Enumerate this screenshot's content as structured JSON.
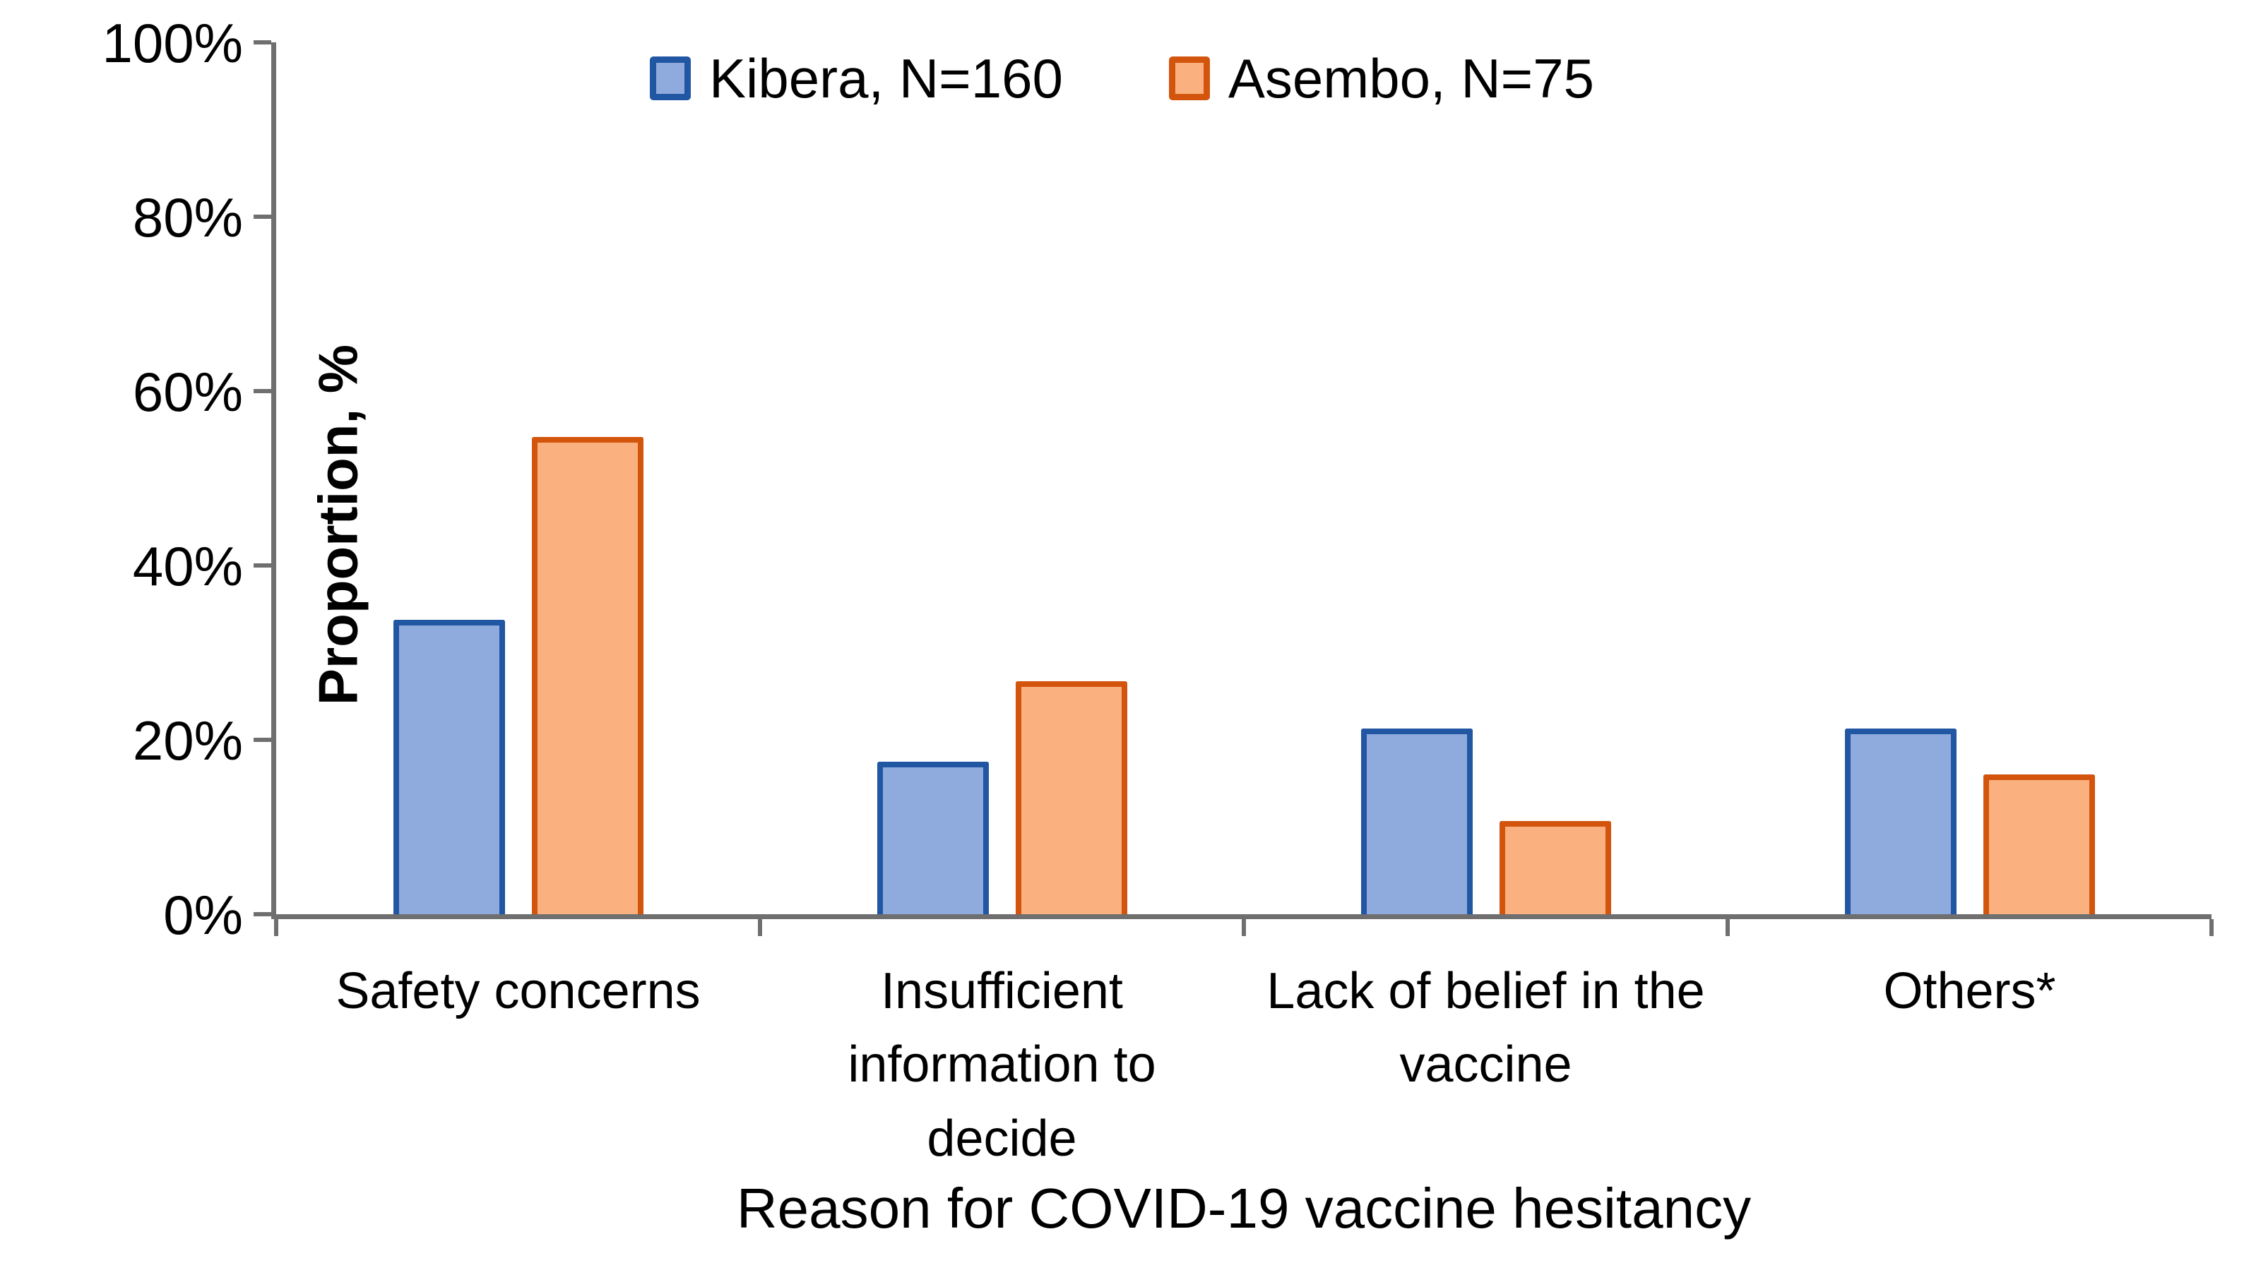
{
  "chart_data": {
    "type": "bar",
    "title": "",
    "categories": [
      "Safety concerns",
      "Insufficient\ninformation to\ndecide",
      "Lack of belief in the\nvaccine",
      "Others*"
    ],
    "series": [
      {
        "name": "Kibera, N=160",
        "values": [
          33.8,
          17.5,
          21.3,
          21.3
        ],
        "fill_color": "#8FAADC",
        "border_color": "#2056A2"
      },
      {
        "name": "Asembo, N=75",
        "values": [
          54.7,
          26.7,
          10.7,
          16.0
        ],
        "fill_color": "#FBB17F",
        "border_color": "#D3540D"
      }
    ],
    "xlabel": "Reason for COVID-19 vaccine hesitancy",
    "ylabel": "Proportion, %",
    "ylim": [
      0,
      100
    ],
    "yticks": [
      0,
      20,
      40,
      60,
      80,
      100
    ],
    "ytick_suffix": "%",
    "legend_position": "top",
    "grid": false,
    "axis_color": "#6f6f6f",
    "text_color": "#000000"
  }
}
